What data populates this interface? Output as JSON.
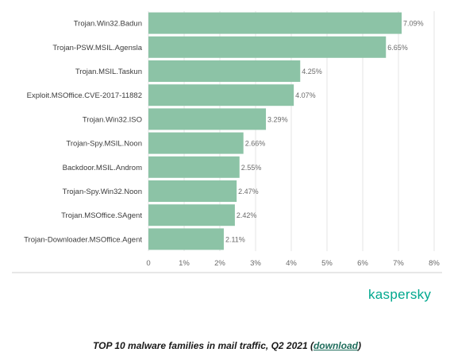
{
  "chart_data": {
    "type": "bar",
    "orientation": "horizontal",
    "categories": [
      "Trojan.Win32.Badun",
      "Trojan-PSW.MSIL.Agensla",
      "Trojan.MSIL.Taskun",
      "Exploit.MSOffice.CVE-2017-11882",
      "Trojan.Win32.ISO",
      "Trojan-Spy.MSIL.Noon",
      "Backdoor.MSIL.Androm",
      "Trojan-Spy.Win32.Noon",
      "Trojan.MSOffice.SAgent",
      "Trojan-Downloader.MSOffice.Agent"
    ],
    "values": [
      7.09,
      6.65,
      4.25,
      4.07,
      3.29,
      2.66,
      2.55,
      2.47,
      2.42,
      2.11
    ],
    "value_labels": [
      "7.09%",
      "6.65%",
      "4.25%",
      "4.07%",
      "3.29%",
      "2.66%",
      "2.55%",
      "2.47%",
      "2.42%",
      "2.11%"
    ],
    "xlim": [
      0,
      8
    ],
    "ticks": [
      "0",
      "1%",
      "2%",
      "3%",
      "4%",
      "5%",
      "6%",
      "7%",
      "8%"
    ],
    "grid": true,
    "bar_color": "#8cc3a6",
    "title": "",
    "xlabel": "",
    "ylabel": ""
  },
  "brand": "kaspersky",
  "caption": {
    "text": "TOP 10 malware families in mail traffic, Q2 2021 (",
    "link": "download",
    "end": ")"
  }
}
